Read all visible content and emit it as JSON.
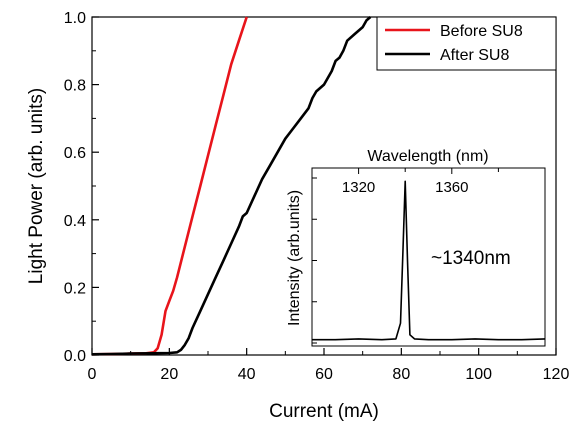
{
  "chart_data": [
    {
      "type": "line",
      "xlabel": "Current (mA)",
      "ylabel": "Light Power (arb. units)",
      "xlim": [
        0,
        120
      ],
      "ylim": [
        0,
        1.0
      ],
      "x_ticks": [
        0,
        20,
        40,
        60,
        80,
        100,
        120
      ],
      "x_tick_labels": [
        "0",
        "20",
        "40",
        "60",
        "80",
        "100",
        "120"
      ],
      "y_ticks": [
        0.0,
        0.2,
        0.4,
        0.6,
        0.8,
        1.0
      ],
      "y_tick_labels": [
        "0.0",
        "0.2",
        "0.4",
        "0.6",
        "0.8",
        "1.0"
      ],
      "grid": false,
      "legend": "top-right",
      "series": [
        {
          "name": "Before SU8",
          "color": "#e8141b",
          "x": [
            0,
            5,
            10,
            14,
            16,
            17,
            18,
            19,
            20,
            21,
            22,
            24,
            26,
            28,
            30,
            32,
            34,
            36,
            38,
            40
          ],
          "y": [
            0.002,
            0.003,
            0.004,
            0.005,
            0.008,
            0.02,
            0.06,
            0.13,
            0.16,
            0.19,
            0.23,
            0.32,
            0.41,
            0.5,
            0.59,
            0.68,
            0.77,
            0.86,
            0.93,
            1.0
          ]
        },
        {
          "name": "After SU8",
          "color": "#000000",
          "x": [
            0,
            5,
            10,
            15,
            20,
            22,
            23,
            24,
            25,
            26,
            28,
            30,
            32,
            34,
            36,
            38,
            39,
            40,
            42,
            44,
            46,
            48,
            50,
            52,
            54,
            56,
            57,
            58,
            60,
            62,
            63,
            64,
            65,
            66,
            68,
            70,
            71,
            72
          ],
          "y": [
            0.002,
            0.003,
            0.004,
            0.005,
            0.006,
            0.008,
            0.015,
            0.03,
            0.05,
            0.08,
            0.13,
            0.18,
            0.23,
            0.28,
            0.33,
            0.38,
            0.41,
            0.42,
            0.47,
            0.52,
            0.56,
            0.6,
            0.64,
            0.67,
            0.7,
            0.73,
            0.76,
            0.78,
            0.8,
            0.84,
            0.87,
            0.88,
            0.9,
            0.93,
            0.95,
            0.97,
            0.99,
            1.0
          ]
        }
      ]
    },
    {
      "type": "line",
      "xlabel": "Wavelength (nm)",
      "ylabel": "Intensity (arb.units)",
      "xlim": [
        1300,
        1400
      ],
      "x_ticks": [
        1320,
        1360
      ],
      "x_tick_labels": [
        "1320",
        "1360"
      ],
      "annotation": "~1340nm",
      "series": [
        {
          "color": "#000000",
          "x": [
            1300,
            1310,
            1320,
            1330,
            1336,
            1338,
            1339,
            1340,
            1341,
            1342,
            1344,
            1350,
            1360,
            1370,
            1380,
            1390,
            1400
          ],
          "y": [
            0.02,
            0.02,
            0.025,
            0.02,
            0.025,
            0.12,
            0.55,
            0.98,
            0.5,
            0.05,
            0.025,
            0.02,
            0.02,
            0.025,
            0.02,
            0.02,
            0.025
          ]
        }
      ]
    }
  ]
}
